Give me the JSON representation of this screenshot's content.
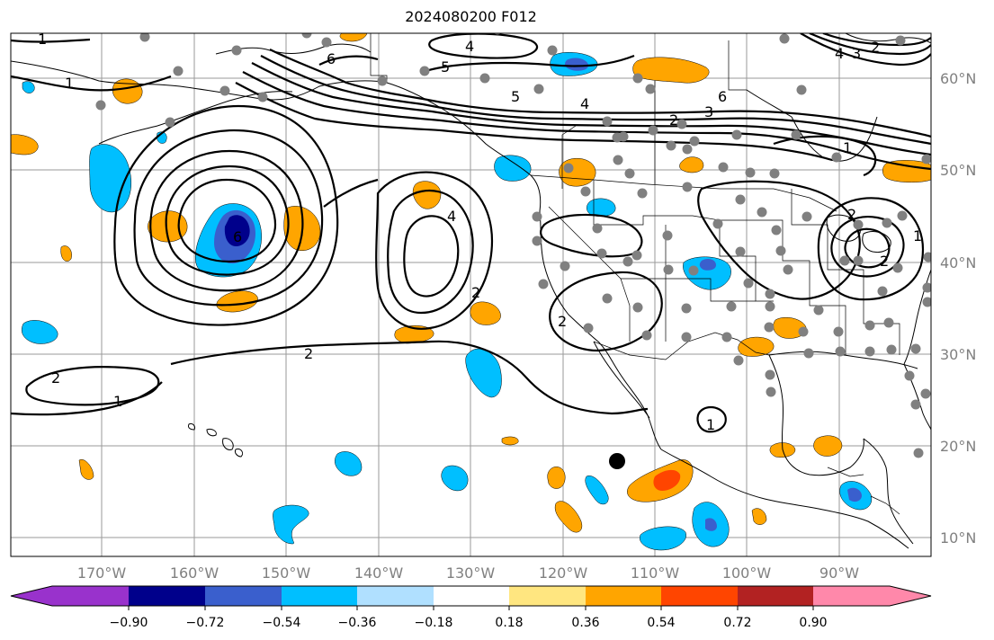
{
  "title": "2024080200 F012",
  "map": {
    "longitude_labels": [
      "170°W",
      "160°W",
      "150°W",
      "140°W",
      "130°W",
      "120°W",
      "110°W",
      "100°W",
      "90°W"
    ],
    "latitude_labels": [
      "60°N",
      "50°N",
      "40°N",
      "30°N",
      "20°N",
      "10°N"
    ],
    "contour_labels": [
      "1",
      "1",
      "4",
      "6",
      "5",
      "5",
      "4",
      "6",
      "2",
      "3",
      "2",
      "4",
      "4",
      "3",
      "1",
      "6",
      "2",
      "2",
      "2",
      "1",
      "2",
      "1",
      "2",
      "2",
      "1"
    ]
  },
  "colorbar": {
    "tick_labels": [
      "−0.90",
      "−0.72",
      "−0.54",
      "−0.36",
      "−0.18",
      "0.18",
      "0.36",
      "0.54",
      "0.72",
      "0.90"
    ],
    "colors": [
      "#9932cc",
      "#00008b",
      "#3a5fcd",
      "#00bfff",
      "#b0e0ff",
      "#ffffff",
      "#ffe680",
      "#ffa500",
      "#ff4500",
      "#b22222",
      "#ff88aa"
    ]
  },
  "colors": {
    "grid": "#9a9a9a",
    "station_dots": "#808080",
    "storm_marker": "#000000"
  }
}
